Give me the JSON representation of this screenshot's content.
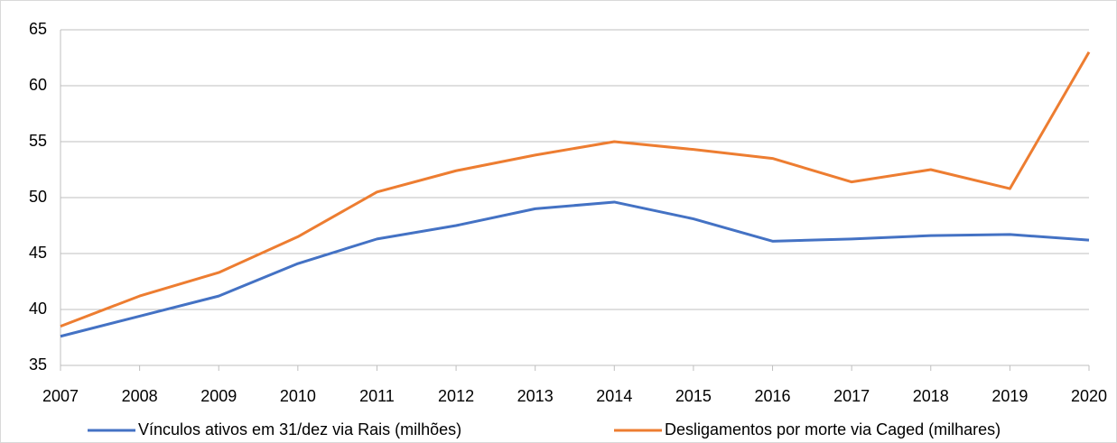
{
  "chart_data": {
    "type": "line",
    "x": [
      2007,
      2008,
      2009,
      2010,
      2011,
      2012,
      2013,
      2014,
      2015,
      2016,
      2017,
      2018,
      2019,
      2020
    ],
    "xlim": [
      2007,
      2020
    ],
    "xticks": [
      2007,
      2008,
      2009,
      2010,
      2011,
      2012,
      2013,
      2014,
      2015,
      2016,
      2017,
      2018,
      2019,
      2020
    ],
    "ylim": [
      35,
      65
    ],
    "yticks": [
      35,
      40,
      45,
      50,
      55,
      60,
      65
    ],
    "grid": true,
    "legend": "bottom",
    "series": [
      {
        "name": "Vínculos ativos em 31/dez via Rais (milhões)",
        "color": "#4472c4",
        "values": [
          37.6,
          39.4,
          41.2,
          44.1,
          46.3,
          47.5,
          49.0,
          49.6,
          48.1,
          46.1,
          46.3,
          46.6,
          46.7,
          46.2
        ]
      },
      {
        "name": "Desligamentos por morte via Caged (milhares)",
        "color": "#ed7d31",
        "values": [
          38.5,
          41.2,
          43.3,
          46.5,
          50.5,
          52.4,
          53.8,
          55.0,
          54.3,
          53.5,
          51.4,
          52.5,
          50.8,
          63.0
        ]
      }
    ]
  }
}
